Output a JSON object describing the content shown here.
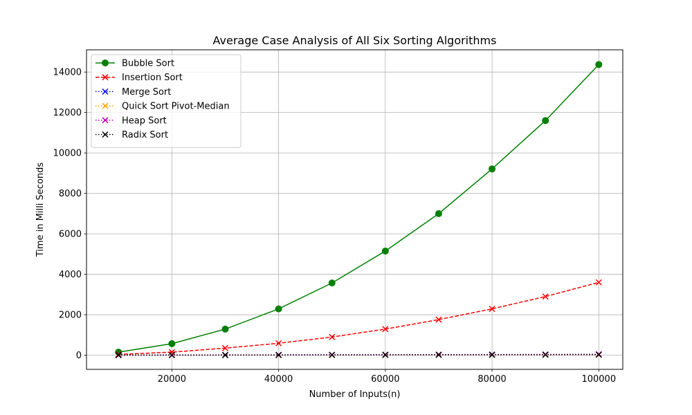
{
  "chart_data": {
    "type": "line",
    "title": "Average Case Analysis of All Six Sorting Algorithms",
    "xlabel": "Number of Inputs(n)",
    "ylabel": "Time in Milli Seconds",
    "x": [
      10000,
      20000,
      30000,
      40000,
      50000,
      60000,
      70000,
      80000,
      90000,
      100000
    ],
    "xlim": [
      4000,
      104500
    ],
    "ylim": [
      -700,
      15100
    ],
    "xticks": [
      20000,
      40000,
      60000,
      80000,
      100000
    ],
    "yticks": [
      0,
      2000,
      4000,
      6000,
      8000,
      10000,
      12000,
      14000
    ],
    "grid": true,
    "legend_position": "top-left",
    "series": [
      {
        "name": "Bubble Sort",
        "color": "#008000",
        "line_style": "solid",
        "marker": "circle",
        "values": [
          150,
          570,
          1290,
          2290,
          3570,
          5150,
          7000,
          9210,
          11600,
          14370
        ]
      },
      {
        "name": "Insertion Sort",
        "color": "#ff0000",
        "line_style": "dashed",
        "marker": "x",
        "values": [
          40,
          150,
          350,
          590,
          900,
          1290,
          1760,
          2290,
          2900,
          3600
        ]
      },
      {
        "name": "Merge Sort",
        "color": "#0000ff",
        "line_style": "dotted",
        "marker": "x",
        "values": [
          3,
          6,
          9,
          12,
          15,
          18,
          21,
          24,
          27,
          30
        ]
      },
      {
        "name": "Quick Sort Pivot-Median",
        "color": "#ffa500",
        "line_style": "dotted",
        "marker": "x",
        "values": [
          2,
          4,
          6,
          8,
          10,
          12,
          14,
          16,
          18,
          20
        ]
      },
      {
        "name": "Heap Sort",
        "color": "#bf00bf",
        "line_style": "dotted",
        "marker": "x",
        "values": [
          4,
          8,
          12,
          16,
          20,
          25,
          30,
          35,
          40,
          45
        ]
      },
      {
        "name": "Radix Sort",
        "color": "#000000",
        "line_style": "dotted",
        "marker": "x",
        "values": [
          3,
          5,
          8,
          10,
          13,
          16,
          18,
          21,
          24,
          27
        ]
      }
    ]
  }
}
